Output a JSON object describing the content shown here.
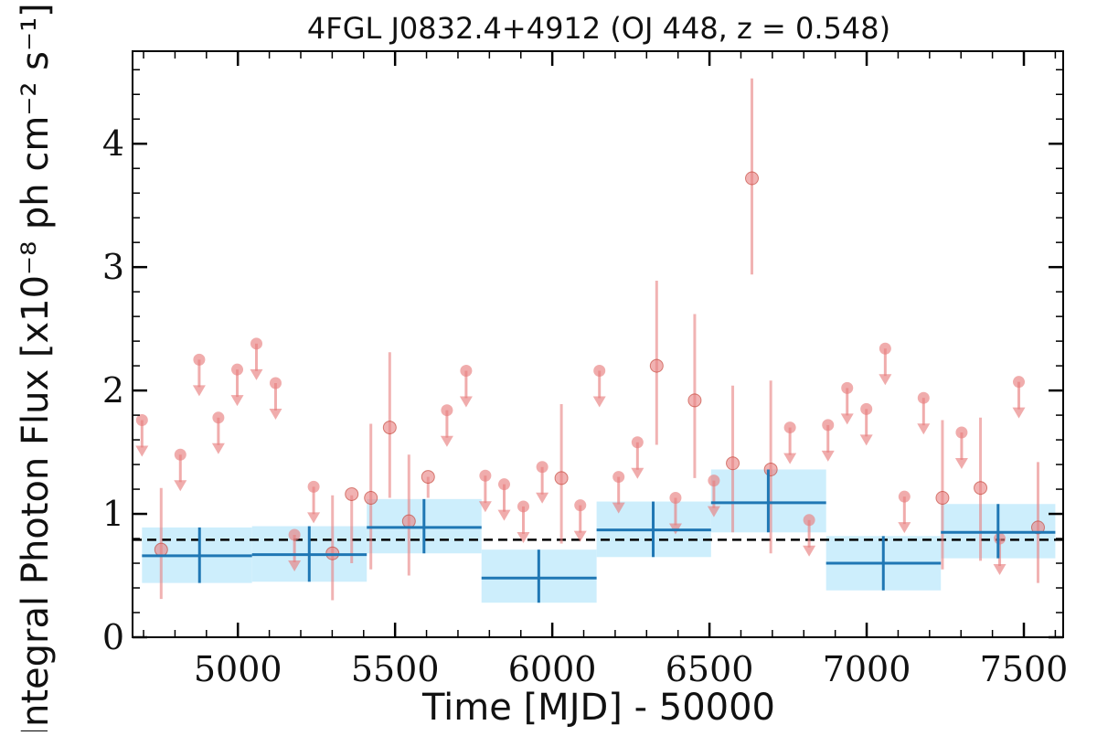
{
  "chart_data": {
    "type": "scatter",
    "title": "4FGL J0832.4+4912 (OJ 448, z = 0.548)",
    "xlabel": "Time [MJD] - 50000",
    "ylabel": "Integral Photon Flux [x10⁻⁸ ph cm⁻² s⁻¹]",
    "xlim": [
      4665,
      7625
    ],
    "ylim": [
      0,
      4.75
    ],
    "x_ticks": [
      5000,
      5500,
      6000,
      6500,
      7000,
      7500
    ],
    "x_tick_labels": [
      "5000",
      "5500",
      "6000",
      "6500",
      "7000",
      "7500"
    ],
    "y_ticks": [
      0,
      1,
      2,
      3,
      4
    ],
    "y_tick_labels": [
      "0",
      "1",
      "2",
      "3",
      "4"
    ],
    "grid": false,
    "reference_line": {
      "y": 0.79,
      "style": "dashed",
      "color": "#000000"
    },
    "colors": {
      "short_bins": "#e88080",
      "long_bins": "#1f77b4",
      "long_bins_band": "#cdeefc",
      "frame": "#000000"
    },
    "series": [
      {
        "kind": "upper_limits",
        "points": [
          {
            "x": 4695,
            "y": 1.76
          },
          {
            "x": 4817,
            "y": 1.48
          },
          {
            "x": 4877,
            "y": 2.25
          },
          {
            "x": 4938,
            "y": 1.78
          },
          {
            "x": 4998,
            "y": 2.17
          },
          {
            "x": 5059,
            "y": 2.38
          },
          {
            "x": 5120,
            "y": 2.06
          },
          {
            "x": 5180,
            "y": 0.83
          },
          {
            "x": 5241,
            "y": 1.22
          },
          {
            "x": 5665,
            "y": 1.84
          },
          {
            "x": 5726,
            "y": 2.16
          },
          {
            "x": 5787,
            "y": 1.31
          },
          {
            "x": 5847,
            "y": 1.24
          },
          {
            "x": 5908,
            "y": 1.06
          },
          {
            "x": 5968,
            "y": 1.38
          },
          {
            "x": 6089,
            "y": 1.07
          },
          {
            "x": 6150,
            "y": 2.16
          },
          {
            "x": 6211,
            "y": 1.3
          },
          {
            "x": 6271,
            "y": 1.58
          },
          {
            "x": 6392,
            "y": 1.13
          },
          {
            "x": 6514,
            "y": 1.27
          },
          {
            "x": 6756,
            "y": 1.7
          },
          {
            "x": 6817,
            "y": 0.95
          },
          {
            "x": 6877,
            "y": 1.72
          },
          {
            "x": 6938,
            "y": 2.02
          },
          {
            "x": 6999,
            "y": 1.85
          },
          {
            "x": 7059,
            "y": 2.34
          },
          {
            "x": 7120,
            "y": 1.14
          },
          {
            "x": 7181,
            "y": 1.94
          },
          {
            "x": 7302,
            "y": 1.66
          },
          {
            "x": 7423,
            "y": 0.8
          },
          {
            "x": 7484,
            "y": 2.07
          }
        ]
      },
      {
        "kind": "detections",
        "points": [
          {
            "x": 4756,
            "y": 0.71,
            "ylo": 0.31,
            "yhi": 1.21
          },
          {
            "x": 5301,
            "y": 0.68,
            "ylo": 0.3,
            "yhi": 1.15
          },
          {
            "x": 5362,
            "y": 1.16,
            "ylo": 0.6,
            "yhi": 1.15
          },
          {
            "x": 5423,
            "y": 1.13,
            "ylo": 0.55,
            "yhi": 1.73
          },
          {
            "x": 5483,
            "y": 1.7,
            "ylo": 1.13,
            "yhi": 2.31
          },
          {
            "x": 5544,
            "y": 0.94,
            "ylo": 0.5,
            "yhi": 1.48
          },
          {
            "x": 5605,
            "y": 1.3,
            "ylo": 1.13,
            "yhi": 1.3
          },
          {
            "x": 6029,
            "y": 1.29,
            "ylo": 0.76,
            "yhi": 1.89
          },
          {
            "x": 6332,
            "y": 2.2,
            "ylo": 1.56,
            "yhi": 2.89
          },
          {
            "x": 6453,
            "y": 1.92,
            "ylo": 1.29,
            "yhi": 2.62
          },
          {
            "x": 6574,
            "y": 1.41,
            "ylo": 0.85,
            "yhi": 2.04
          },
          {
            "x": 6635,
            "y": 3.72,
            "ylo": 2.94,
            "yhi": 4.53
          },
          {
            "x": 6695,
            "y": 1.36,
            "ylo": 0.68,
            "yhi": 2.08
          },
          {
            "x": 7241,
            "y": 1.13,
            "ylo": 0.55,
            "yhi": 1.76
          },
          {
            "x": 7362,
            "y": 1.21,
            "ylo": 0.62,
            "yhi": 1.78
          },
          {
            "x": 7545,
            "y": 0.89,
            "ylo": 0.44,
            "yhi": 1.42
          }
        ]
      },
      {
        "kind": "long_bins",
        "bins": [
          {
            "x": 4878,
            "xlo": 4695,
            "xhi": 5045,
            "y": 0.66,
            "ylo": 0.44,
            "yhi": 0.89
          },
          {
            "x": 5227,
            "xlo": 5045,
            "xhi": 5410,
            "y": 0.67,
            "ylo": 0.45,
            "yhi": 0.9
          },
          {
            "x": 5592,
            "xlo": 5410,
            "xhi": 5775,
            "y": 0.89,
            "ylo": 0.68,
            "yhi": 1.12
          },
          {
            "x": 5957,
            "xlo": 5775,
            "xhi": 6141,
            "y": 0.48,
            "ylo": 0.28,
            "yhi": 0.71
          },
          {
            "x": 6321,
            "xlo": 6141,
            "xhi": 6505,
            "y": 0.87,
            "ylo": 0.65,
            "yhi": 1.1
          },
          {
            "x": 6687,
            "xlo": 6505,
            "xhi": 6871,
            "y": 1.09,
            "ylo": 0.85,
            "yhi": 1.36
          },
          {
            "x": 7053,
            "xlo": 6871,
            "xhi": 7236,
            "y": 0.6,
            "ylo": 0.38,
            "yhi": 0.82
          },
          {
            "x": 7418,
            "xlo": 7236,
            "xhi": 7600,
            "y": 0.85,
            "ylo": 0.64,
            "yhi": 1.08
          }
        ]
      }
    ]
  }
}
